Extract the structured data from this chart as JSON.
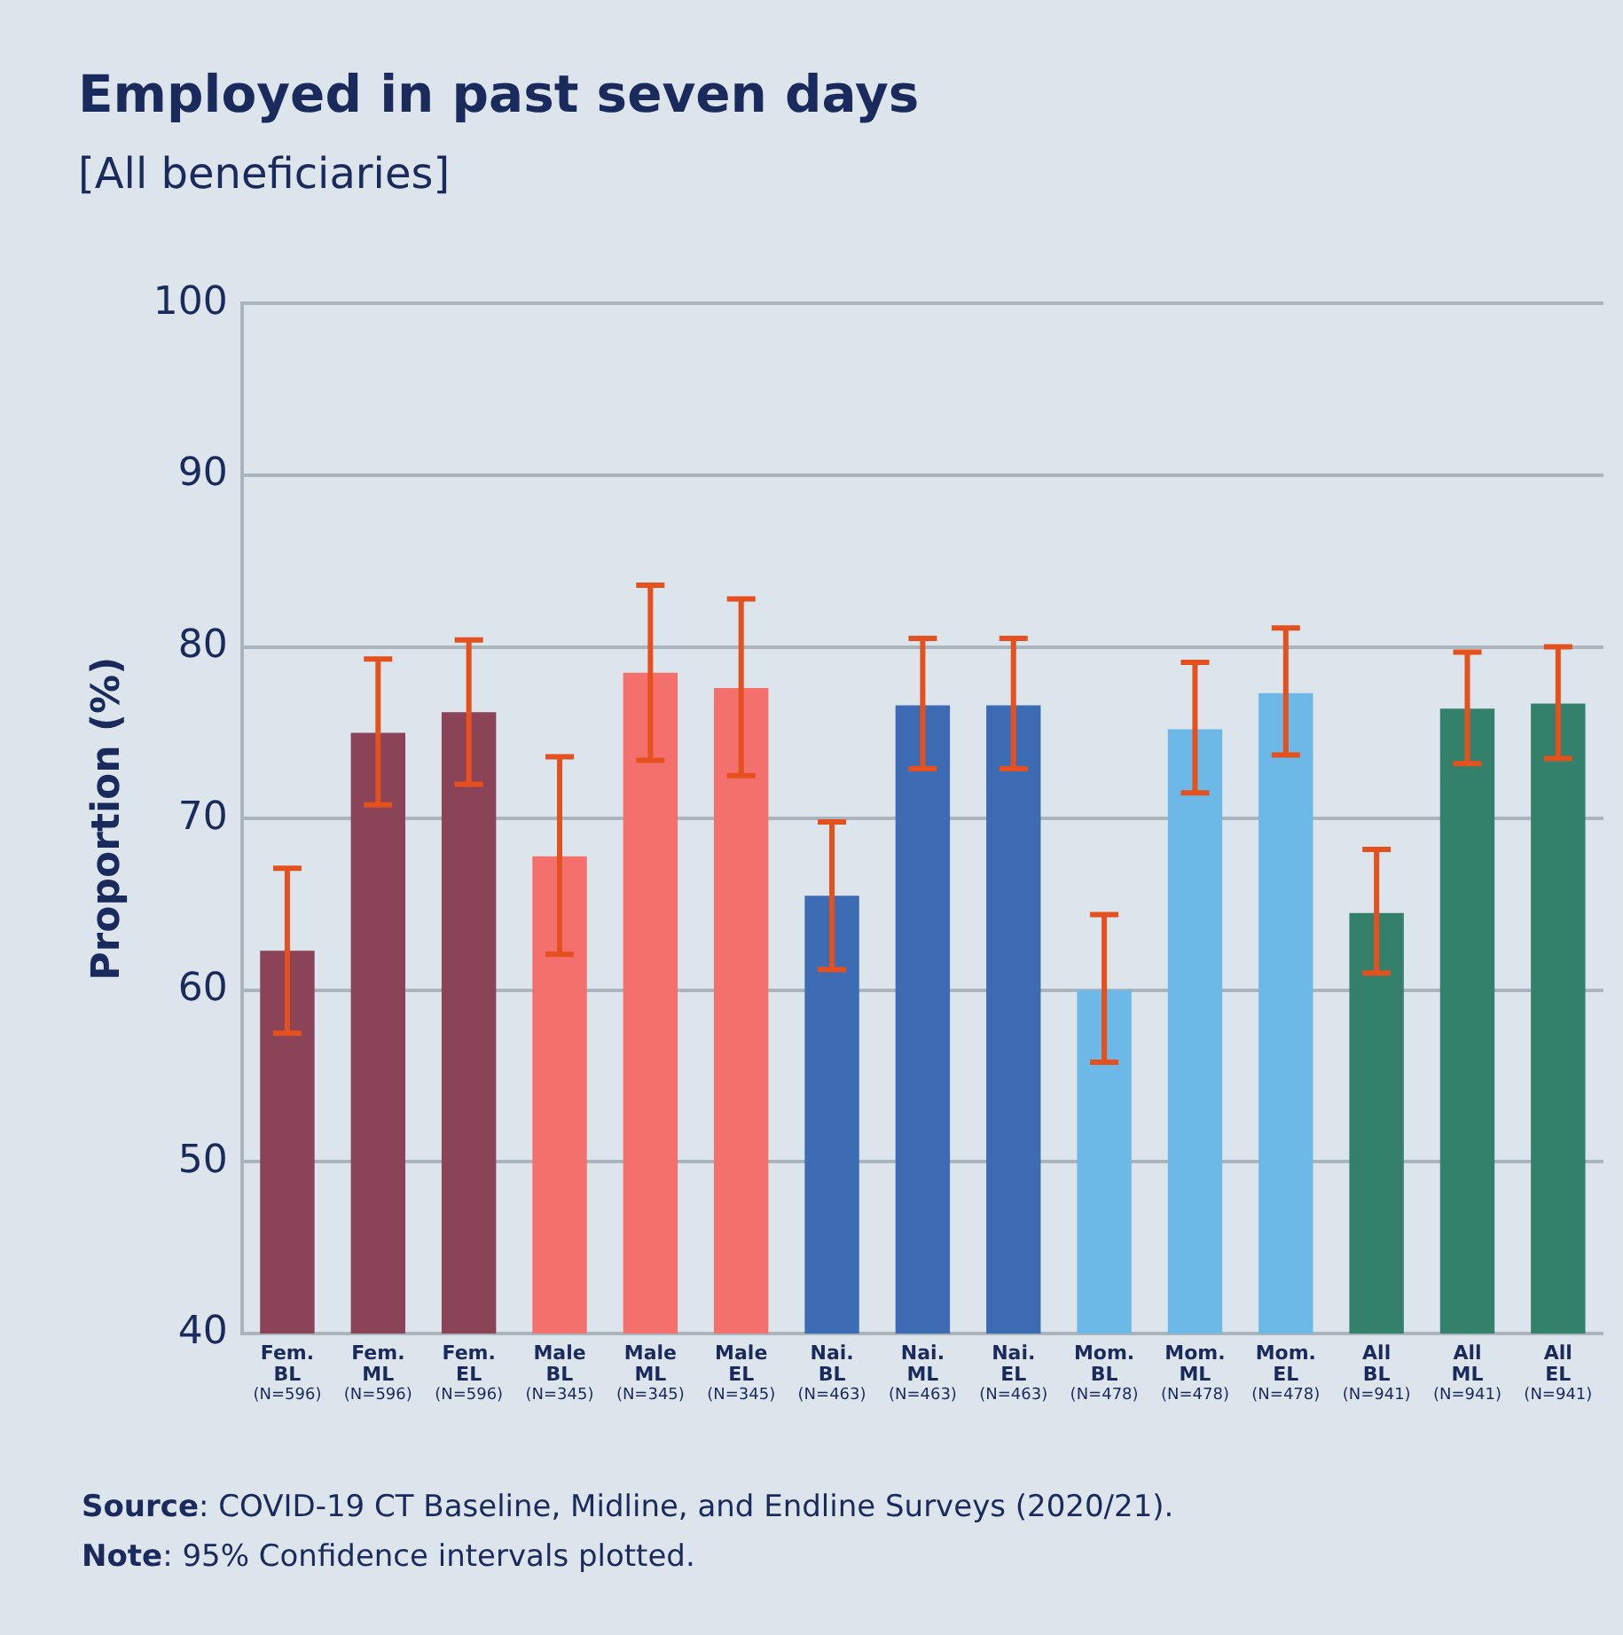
{
  "chart_data": {
    "type": "bar",
    "title": "Employed in past seven days",
    "subtitle": "[All beneficiaries]",
    "ylabel": "Proportion (%)",
    "categories": [
      "Fem.\nBL\n(N=596)",
      "Fem.\nML\n(N=596)",
      "Fem.\nEL\n(N=596)",
      "Male\nBL\n(N=345)",
      "Male\nML\n(N=345)",
      "Male\nEL\n(N=345)",
      "Nai.\nBL\n(N=463)",
      "Nai.\nML\n(N=463)",
      "Nai.\nEL\n(N=463)",
      "Mom.\nBL\n(N=478)",
      "Mom.\nML\n(N=478)",
      "Mom.\nEL\n(N=478)",
      "All\nBL\n(N=941)",
      "All\nML\n(N=941)",
      "All\nEL\n(N=941)"
    ],
    "values": [
      62.3,
      75.0,
      76.2,
      67.8,
      78.5,
      77.6,
      65.5,
      76.6,
      76.6,
      60.0,
      75.2,
      77.3,
      64.5,
      76.4,
      76.7
    ],
    "colors": [
      "#8b4357",
      "#8b4357",
      "#8b4357",
      "#f4706c",
      "#f4706c",
      "#f4706c",
      "#3d6cb5",
      "#3d6cb5",
      "#3d6cb5",
      "#6cb8e6",
      "#6cb8e6",
      "#6cb8e6",
      "#33816a",
      "#33816a",
      "#33816a"
    ],
    "errors": [
      [
        57.5,
        67.1
      ],
      [
        70.8,
        79.3
      ],
      [
        72.0,
        80.4
      ],
      [
        62.1,
        73.6
      ],
      [
        73.4,
        83.6
      ],
      [
        72.5,
        82.8
      ],
      [
        61.2,
        69.8
      ],
      [
        72.9,
        80.5
      ],
      [
        72.9,
        80.5
      ],
      [
        55.8,
        64.4
      ],
      [
        71.5,
        79.1
      ],
      [
        73.7,
        81.1
      ],
      [
        61.0,
        68.2
      ],
      [
        73.2,
        79.7
      ],
      [
        73.5,
        80.0
      ]
    ],
    "ylim": [
      40,
      100
    ],
    "yticks": [
      40,
      50,
      60,
      70,
      80,
      90,
      100
    ],
    "grid": "y",
    "legend": false,
    "annotations": [
      "Source: COVID-19 CT Baseline, Midline, and Endline Surveys (2020/21).",
      "Note: 95% Confidence intervals plotted."
    ]
  }
}
